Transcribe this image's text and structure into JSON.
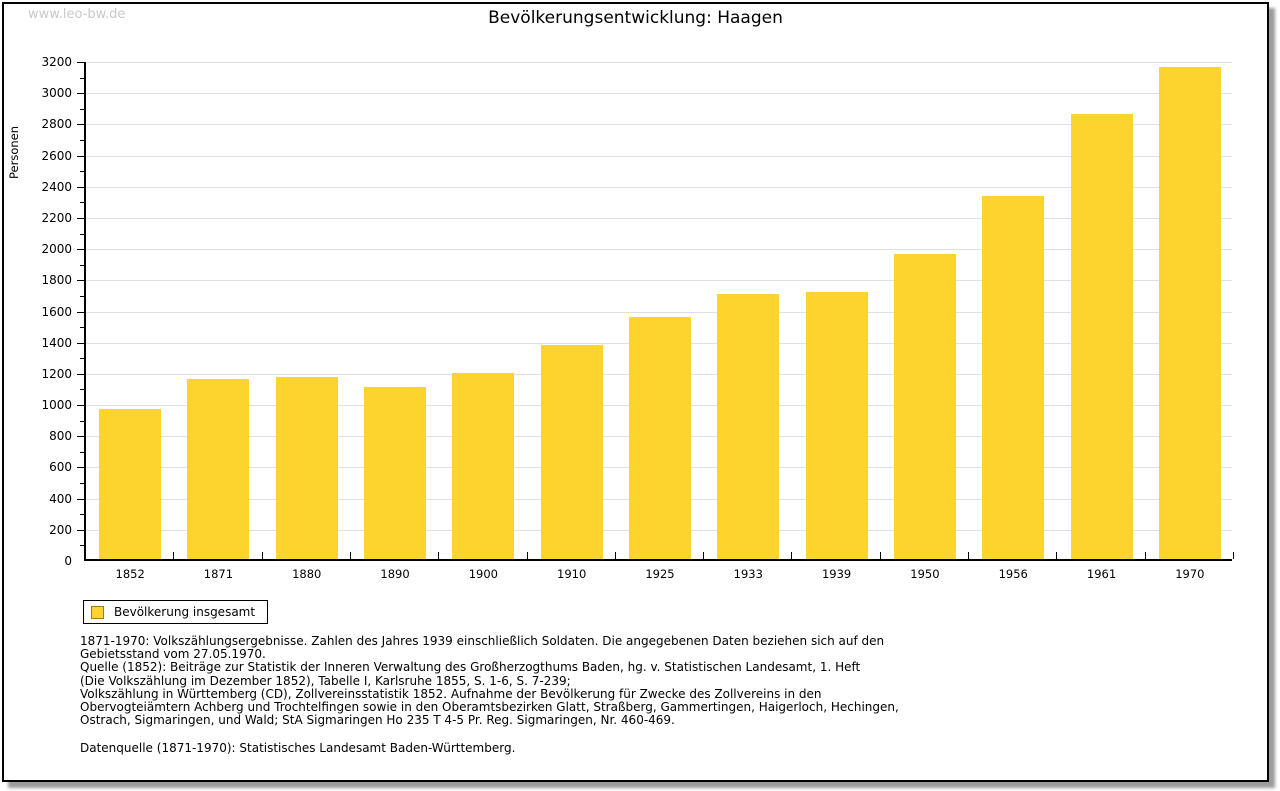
{
  "watermark": "www.leo-bw.de",
  "title": "Bevölkerungsentwicklung: Haagen",
  "chart_data": {
    "type": "bar",
    "title": "Bevölkerungsentwicklung: Haagen",
    "ylabel": "Personen",
    "xlabel": "",
    "categories": [
      "1852",
      "1871",
      "1880",
      "1890",
      "1900",
      "1910",
      "1925",
      "1933",
      "1939",
      "1950",
      "1956",
      "1961",
      "1970"
    ],
    "series": [
      {
        "name": "Bevölkerung insgesamt",
        "values": [
          960,
          1155,
          1165,
          1105,
          1195,
          1370,
          1550,
          1700,
          1710,
          1955,
          2330,
          2855,
          3155
        ]
      }
    ],
    "ylim": [
      0,
      3200
    ],
    "ytick_step": 200,
    "ytick_minor_step": 100,
    "yticks": [
      0,
      200,
      400,
      600,
      800,
      1000,
      1200,
      1400,
      1600,
      1800,
      2000,
      2200,
      2400,
      2600,
      2800,
      3000,
      3200
    ],
    "grid": "horizontal-major",
    "legend_position": "bottom-left",
    "bar_color": "#fdd32e",
    "swatch_border_color": "#a08000",
    "gridline_color": "#e0e0e0"
  },
  "legend": {
    "label": "Bevölkerung insgesamt",
    "swatch_color": "#fdd32e",
    "swatch_border": "#a08000"
  },
  "footnotes": {
    "para1": [
      "1871-1970: Volkszählungsergebnisse. Zahlen des Jahres 1939 einschließlich Soldaten. Die angegebenen Daten beziehen sich auf den",
      "Gebietsstand vom 27.05.1970.",
      "Quelle (1852): Beiträge zur Statistik der Inneren Verwaltung des Großherzogthums Baden, hg. v. Statistischen Landesamt, 1. Heft",
      "(Die Volkszählung im Dezember 1852), Tabelle I, Karlsruhe 1855, S. 1-6, S. 7-239;",
      "Volkszählung in Württemberg (CD), Zollvereinsstatistik 1852. Aufnahme der Bevölkerung für Zwecke des Zollvereins in den",
      "Obervogteiämtern Achberg und Trochtelfingen sowie in den Oberamtsbezirken Glatt, Straßberg, Gammertingen, Haigerloch, Hechingen,",
      "Ostrach, Sigmaringen, und Wald; StA Sigmaringen Ho 235 T 4-5 Pr. Reg. Sigmaringen, Nr. 460-469."
    ],
    "para2": "Datenquelle (1871-1970): Statistisches Landesamt Baden-Württemberg."
  }
}
